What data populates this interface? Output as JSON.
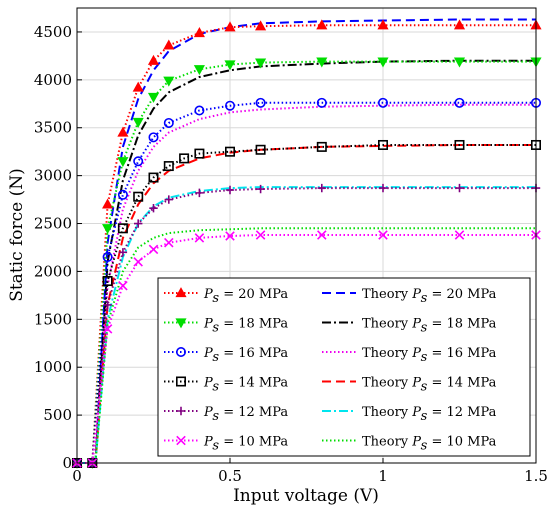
{
  "chart_data": {
    "type": "line",
    "xlabel": "Input voltage (V)",
    "ylabel": "Static force (N)",
    "xlim": [
      0,
      1.5
    ],
    "ylim": [
      0,
      4750
    ],
    "xticks": [
      0,
      0.5,
      1,
      1.5
    ],
    "xtick_labels": [
      "0",
      "0.5",
      "1",
      "1.5"
    ],
    "yticks": [
      0,
      500,
      1000,
      1500,
      2000,
      2500,
      3000,
      3500,
      4000,
      4500
    ],
    "ytick_labels": [
      "0",
      "500",
      "1000",
      "1500",
      "2000",
      "2500",
      "3000",
      "3500",
      "4000",
      "4500"
    ],
    "grid": true,
    "legend_position": "bottom-right",
    "series": [
      {
        "name": "P_s = 20 MPa",
        "label": {
          "prefix": "P",
          "sub": "s",
          "rest": " = 20 MPa"
        },
        "kind": "experiment",
        "color": "#ff0000",
        "marker": "triangle-up",
        "dash": "1.5 2.5",
        "x": [
          0,
          0.05,
          0.1,
          0.15,
          0.2,
          0.25,
          0.3,
          0.4,
          0.5,
          0.6,
          0.8,
          1.0,
          1.25,
          1.5
        ],
        "values": [
          0,
          0,
          2700,
          3450,
          3920,
          4200,
          4360,
          4490,
          4550,
          4560,
          4570,
          4570,
          4570,
          4570
        ]
      },
      {
        "name": "P_s = 18 MPa",
        "label": {
          "prefix": "P",
          "sub": "s",
          "rest": " = 18 MPa"
        },
        "kind": "experiment",
        "color": "#00dd00",
        "marker": "triangle-down",
        "dash": "1.5 2.5",
        "x": [
          0,
          0.05,
          0.1,
          0.15,
          0.2,
          0.25,
          0.3,
          0.4,
          0.5,
          0.6,
          0.8,
          1.0,
          1.25,
          1.5
        ],
        "values": [
          0,
          0,
          2450,
          3150,
          3560,
          3820,
          3990,
          4110,
          4160,
          4180,
          4190,
          4190,
          4190,
          4190
        ]
      },
      {
        "name": "P_s = 16 MPa",
        "label": {
          "prefix": "P",
          "sub": "s",
          "rest": " = 16 MPa"
        },
        "kind": "experiment",
        "color": "#0000ff",
        "marker": "circle",
        "dash": "1.5 2.5",
        "x": [
          0,
          0.05,
          0.1,
          0.15,
          0.2,
          0.25,
          0.3,
          0.4,
          0.5,
          0.6,
          0.8,
          1.0,
          1.25,
          1.5
        ],
        "values": [
          0,
          0,
          2150,
          2800,
          3150,
          3400,
          3550,
          3680,
          3730,
          3760,
          3760,
          3760,
          3760,
          3760
        ]
      },
      {
        "name": "P_s = 14 MPa",
        "label": {
          "prefix": "P",
          "sub": "s",
          "rest": " = 14 MPa"
        },
        "kind": "experiment",
        "color": "#000000",
        "marker": "square",
        "dash": "1.5 2.5",
        "x": [
          0,
          0.05,
          0.1,
          0.15,
          0.2,
          0.25,
          0.3,
          0.35,
          0.4,
          0.5,
          0.6,
          0.8,
          1.0,
          1.25,
          1.5
        ],
        "values": [
          0,
          0,
          1900,
          2450,
          2780,
          2980,
          3100,
          3180,
          3230,
          3250,
          3270,
          3300,
          3320,
          3320,
          3320
        ]
      },
      {
        "name": "P_s = 12 MPa",
        "label": {
          "prefix": "P",
          "sub": "s",
          "rest": " = 12 MPa"
        },
        "kind": "experiment",
        "color": "#800080",
        "marker": "plus",
        "dash": "1.5 2.5",
        "x": [
          0,
          0.05,
          0.1,
          0.15,
          0.2,
          0.25,
          0.3,
          0.4,
          0.5,
          0.6,
          0.8,
          1.0,
          1.25,
          1.5
        ],
        "values": [
          0,
          0,
          1650,
          2200,
          2500,
          2660,
          2750,
          2820,
          2850,
          2860,
          2870,
          2870,
          2870,
          2870
        ]
      },
      {
        "name": "P_s = 10 MPa",
        "label": {
          "prefix": "P",
          "sub": "s",
          "rest": " = 10 MPa"
        },
        "kind": "experiment",
        "color": "#ff00ff",
        "marker": "x",
        "dash": "1.5 2.5",
        "x": [
          0,
          0.05,
          0.1,
          0.15,
          0.2,
          0.25,
          0.3,
          0.4,
          0.5,
          0.6,
          0.8,
          1.0,
          1.25,
          1.5
        ],
        "values": [
          0,
          0,
          1400,
          1850,
          2100,
          2230,
          2300,
          2350,
          2370,
          2380,
          2380,
          2380,
          2380,
          2380
        ]
      },
      {
        "name": "Theory P_s = 20 MPa",
        "label": {
          "prefix": "Theory P",
          "sub": "s",
          "rest": " = 20 MPa"
        },
        "kind": "theory",
        "color": "#0000ff",
        "marker": "none",
        "dash": "9 5",
        "x": [
          0,
          0.06,
          0.1,
          0.15,
          0.2,
          0.25,
          0.3,
          0.4,
          0.5,
          0.6,
          0.8,
          1.0,
          1.25,
          1.5
        ],
        "values": [
          0,
          0,
          2300,
          3300,
          3800,
          4100,
          4300,
          4480,
          4550,
          4590,
          4610,
          4620,
          4630,
          4630
        ]
      },
      {
        "name": "Theory P_s = 18 MPa",
        "label": {
          "prefix": "Theory P",
          "sub": "s",
          "rest": " = 18 MPa"
        },
        "kind": "theory",
        "color": "#000000",
        "marker": "none",
        "dash": "9 3 2 3",
        "x": [
          0,
          0.06,
          0.1,
          0.15,
          0.2,
          0.25,
          0.3,
          0.4,
          0.5,
          0.6,
          0.8,
          1.0,
          1.25,
          1.5
        ],
        "values": [
          0,
          0,
          2100,
          2950,
          3420,
          3700,
          3870,
          4030,
          4100,
          4140,
          4170,
          4190,
          4200,
          4200
        ]
      },
      {
        "name": "Theory P_s = 16 MPa",
        "label": {
          "prefix": "Theory P",
          "sub": "s",
          "rest": " = 16 MPa"
        },
        "kind": "theory",
        "color": "#ee00ee",
        "marker": "none",
        "dash": "1.5 2.5",
        "x": [
          0,
          0.06,
          0.1,
          0.15,
          0.2,
          0.25,
          0.3,
          0.4,
          0.5,
          0.6,
          0.8,
          1.0,
          1.25,
          1.5
        ],
        "values": [
          0,
          0,
          1850,
          2650,
          3050,
          3300,
          3450,
          3590,
          3660,
          3690,
          3720,
          3730,
          3740,
          3740
        ]
      },
      {
        "name": "Theory P_s = 14 MPa",
        "label": {
          "prefix": "Theory P",
          "sub": "s",
          "rest": " = 14 MPa"
        },
        "kind": "theory",
        "color": "#ff0000",
        "marker": "none",
        "dash": "9 5",
        "x": [
          0,
          0.06,
          0.1,
          0.15,
          0.2,
          0.25,
          0.3,
          0.4,
          0.5,
          0.6,
          0.8,
          1.0,
          1.25,
          1.5
        ],
        "values": [
          0,
          0,
          1650,
          2350,
          2700,
          2920,
          3050,
          3180,
          3240,
          3270,
          3300,
          3310,
          3320,
          3320
        ]
      },
      {
        "name": "Theory P_s = 12 MPa",
        "label": {
          "prefix": "Theory P",
          "sub": "s",
          "rest": " = 12 MPa"
        },
        "kind": "theory",
        "color": "#00e5ee",
        "marker": "none",
        "dash": "9 3 2 3",
        "x": [
          0,
          0.06,
          0.1,
          0.15,
          0.2,
          0.25,
          0.3,
          0.4,
          0.5,
          0.6,
          0.8,
          1.0,
          1.25,
          1.5
        ],
        "values": [
          0,
          0,
          1500,
          2150,
          2500,
          2680,
          2770,
          2840,
          2870,
          2880,
          2880,
          2880,
          2880,
          2880
        ]
      },
      {
        "name": "Theory P_s = 10 MPa",
        "label": {
          "prefix": "Theory P",
          "sub": "s",
          "rest": " = 10 MPa"
        },
        "kind": "theory",
        "color": "#00dd00",
        "marker": "none",
        "dash": "1.5 2.5",
        "x": [
          0,
          0.06,
          0.1,
          0.15,
          0.2,
          0.25,
          0.3,
          0.4,
          0.5,
          0.6,
          0.8,
          1.0,
          1.25,
          1.5
        ],
        "values": [
          0,
          0,
          1450,
          2000,
          2250,
          2350,
          2400,
          2430,
          2440,
          2450,
          2450,
          2450,
          2450,
          2450
        ]
      }
    ]
  }
}
